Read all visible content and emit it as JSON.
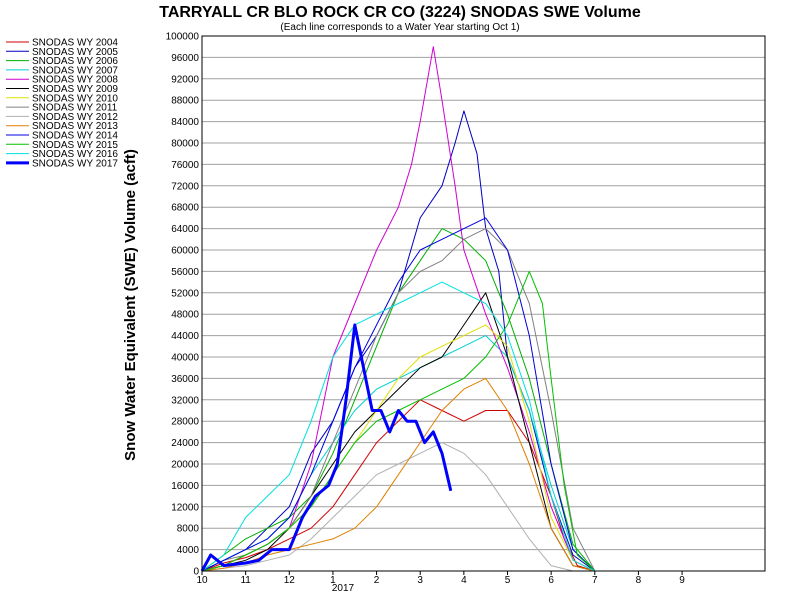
{
  "chart_data": {
    "type": "line",
    "title": "TARRYALL CR BLO ROCK CR CO (3224) SNODAS SWE Volume",
    "subtitle": "(Each line corresponds to a Water Year starting Oct 1)",
    "ylabel": "Snow Water Equivalent (SWE) Volume (acft)",
    "xlabel": "",
    "ylim": [
      0,
      100000
    ],
    "yticks": [
      "0",
      "4000",
      "8000",
      "12000",
      "16000",
      "20000",
      "24000",
      "28000",
      "32000",
      "36000",
      "40000",
      "44000",
      "48000",
      "52000",
      "56000",
      "60000",
      "64000",
      "68000",
      "72000",
      "76000",
      "80000",
      "84000",
      "88000",
      "92000",
      "96000",
      "100000"
    ],
    "xlim": [
      10,
      22.9
    ],
    "xticks": [
      {
        "v": 10,
        "label": "10"
      },
      {
        "v": 11,
        "label": "11"
      },
      {
        "v": 12,
        "label": "12"
      },
      {
        "v": 13,
        "label": "1"
      },
      {
        "v": 14,
        "label": "2"
      },
      {
        "v": 15,
        "label": "3"
      },
      {
        "v": 16,
        "label": "4"
      },
      {
        "v": 17,
        "label": "5"
      },
      {
        "v": 18,
        "label": "6"
      },
      {
        "v": 19,
        "label": "7"
      },
      {
        "v": 20,
        "label": "8"
      },
      {
        "v": 21,
        "label": "9"
      }
    ],
    "year_label": "2017",
    "grid": true,
    "legend": "left",
    "series": [
      {
        "name": "SNODAS WY 2004",
        "color": "#d00000",
        "width": 1,
        "x": [
          10,
          10.5,
          11,
          11.5,
          12,
          12.5,
          13,
          13.5,
          14,
          14.5,
          15,
          15.5,
          16,
          16.5,
          17,
          17.5,
          18,
          18.3,
          18.6,
          19
        ],
        "y": [
          0,
          1500,
          2500,
          4000,
          6000,
          8000,
          12000,
          18000,
          24000,
          28000,
          32000,
          30000,
          28000,
          30000,
          30000,
          24000,
          14000,
          6000,
          1000,
          0
        ]
      },
      {
        "name": "SNODAS WY 2005",
        "color": "#0000c0",
        "width": 1,
        "x": [
          10,
          10.5,
          11,
          11.5,
          12,
          12.5,
          13,
          13.5,
          14,
          14.5,
          15,
          15.5,
          15.8,
          16,
          16.3,
          16.5,
          16.8,
          17,
          17.5,
          18,
          18.5,
          19
        ],
        "y": [
          0,
          2000,
          4000,
          8000,
          12000,
          22000,
          28000,
          38000,
          44000,
          52000,
          66000,
          72000,
          80000,
          86000,
          78000,
          64000,
          56000,
          40000,
          30000,
          14000,
          3000,
          0
        ]
      },
      {
        "name": "SNODAS WY 2006",
        "color": "#00b000",
        "width": 1,
        "x": [
          10,
          10.5,
          11,
          11.5,
          12,
          12.5,
          13,
          13.5,
          14,
          14.5,
          15,
          15.5,
          16,
          16.5,
          17,
          17.5,
          18,
          18.5,
          19
        ],
        "y": [
          0,
          3000,
          6000,
          8000,
          10000,
          14000,
          22000,
          32000,
          42000,
          52000,
          58000,
          64000,
          62000,
          58000,
          48000,
          36000,
          20000,
          5000,
          0
        ]
      },
      {
        "name": "SNODAS WY 2007",
        "color": "#00d0d0",
        "width": 1,
        "x": [
          10,
          10.5,
          11,
          11.5,
          12,
          12.5,
          13,
          13.5,
          14,
          14.5,
          15,
          15.5,
          16,
          16.5,
          17,
          17.5,
          18,
          18.5,
          19
        ],
        "y": [
          0,
          2000,
          4000,
          6000,
          10000,
          18000,
          24000,
          30000,
          34000,
          36000,
          38000,
          40000,
          42000,
          44000,
          40000,
          30000,
          16000,
          4000,
          0
        ]
      },
      {
        "name": "SNODAS WY 2008",
        "color": "#d000d0",
        "width": 1,
        "x": [
          10,
          10.5,
          11,
          11.5,
          12,
          12.5,
          13,
          13.5,
          14,
          14.5,
          14.8,
          15,
          15.3,
          15.5,
          15.8,
          16,
          16.5,
          17,
          17.5,
          18,
          18.5,
          19
        ],
        "y": [
          0,
          1000,
          3000,
          5000,
          8000,
          20000,
          40000,
          50000,
          60000,
          68000,
          76000,
          84000,
          98000,
          88000,
          72000,
          60000,
          48000,
          38000,
          26000,
          12000,
          2000,
          0
        ]
      },
      {
        "name": "SNODAS WY 2009",
        "color": "#000000",
        "width": 1,
        "x": [
          10,
          10.5,
          11,
          11.5,
          12,
          12.5,
          13,
          13.5,
          14,
          14.5,
          15,
          15.5,
          16,
          16.5,
          17,
          17.5,
          18,
          18.5,
          19
        ],
        "y": [
          0,
          1000,
          2000,
          4000,
          8000,
          14000,
          20000,
          26000,
          30000,
          34000,
          38000,
          40000,
          46000,
          52000,
          40000,
          24000,
          8000,
          1000,
          0
        ]
      },
      {
        "name": "SNODAS WY 2010",
        "color": "#e0e000",
        "width": 1,
        "x": [
          10,
          10.5,
          11,
          11.5,
          12,
          12.5,
          13,
          13.5,
          14,
          14.5,
          15,
          15.5,
          16,
          16.5,
          17,
          17.5,
          18,
          18.5,
          19
        ],
        "y": [
          0,
          1000,
          3000,
          5000,
          8000,
          12000,
          18000,
          24000,
          30000,
          36000,
          40000,
          42000,
          44000,
          46000,
          42000,
          28000,
          10000,
          2000,
          0
        ]
      },
      {
        "name": "SNODAS WY 2011",
        "color": "#808080",
        "width": 1,
        "x": [
          10,
          10.5,
          11,
          11.5,
          12,
          12.5,
          13,
          13.5,
          14,
          14.5,
          15,
          15.5,
          16,
          16.5,
          17,
          17.5,
          18,
          18.5,
          19
        ],
        "y": [
          0,
          2000,
          3000,
          5000,
          8000,
          14000,
          24000,
          34000,
          44000,
          52000,
          56000,
          58000,
          62000,
          64000,
          60000,
          50000,
          30000,
          8000,
          0
        ]
      },
      {
        "name": "SNODAS WY 2012",
        "color": "#b0b0b0",
        "width": 1,
        "x": [
          10,
          10.5,
          11,
          11.5,
          12,
          12.5,
          13,
          13.5,
          14,
          14.5,
          15,
          15.5,
          16,
          16.5,
          17,
          17.5,
          18,
          18.5
        ],
        "y": [
          0,
          500,
          1000,
          2000,
          3000,
          6000,
          10000,
          14000,
          18000,
          20000,
          22000,
          24000,
          22000,
          18000,
          12000,
          6000,
          1000,
          0
        ]
      },
      {
        "name": "SNODAS WY 2013",
        "color": "#e08000",
        "width": 1,
        "x": [
          10,
          10.5,
          11,
          11.5,
          12,
          12.5,
          13,
          13.5,
          14,
          14.5,
          15,
          15.5,
          16,
          16.5,
          17,
          17.5,
          18,
          18.5,
          19
        ],
        "y": [
          0,
          500,
          1500,
          3000,
          4000,
          5000,
          6000,
          8000,
          12000,
          18000,
          24000,
          30000,
          34000,
          36000,
          30000,
          20000,
          8000,
          1000,
          0
        ]
      },
      {
        "name": "SNODAS WY 2014",
        "color": "#0000e0",
        "width": 1,
        "x": [
          10,
          10.5,
          11,
          11.5,
          12,
          12.5,
          13,
          13.5,
          14,
          14.5,
          15,
          15.5,
          16,
          16.5,
          17,
          17.5,
          18,
          18.5,
          19
        ],
        "y": [
          0,
          2000,
          4000,
          6000,
          10000,
          18000,
          28000,
          38000,
          46000,
          54000,
          60000,
          62000,
          64000,
          66000,
          60000,
          44000,
          20000,
          4000,
          0
        ]
      },
      {
        "name": "SNODAS WY 2015",
        "color": "#00c000",
        "width": 1,
        "x": [
          10,
          10.5,
          11,
          11.5,
          12,
          12.5,
          13,
          13.5,
          14,
          14.5,
          15,
          15.5,
          16,
          16.5,
          17,
          17.5,
          17.8,
          18,
          18.3,
          18.6,
          19
        ],
        "y": [
          0,
          1000,
          3000,
          5000,
          8000,
          12000,
          18000,
          24000,
          28000,
          30000,
          32000,
          34000,
          36000,
          40000,
          46000,
          56000,
          50000,
          36000,
          16000,
          3000,
          0
        ]
      },
      {
        "name": "SNODAS WY 2016",
        "color": "#00e0e0",
        "width": 1,
        "x": [
          10,
          10.5,
          11,
          11.5,
          12,
          12.5,
          13,
          13.5,
          14,
          14.5,
          15,
          15.5,
          16,
          16.5,
          17,
          17.5,
          18,
          18.5,
          19
        ],
        "y": [
          0,
          3000,
          10000,
          14000,
          18000,
          28000,
          40000,
          46000,
          48000,
          50000,
          52000,
          54000,
          52000,
          50000,
          44000,
          32000,
          14000,
          2000,
          0
        ]
      },
      {
        "name": "SNODAS WY 2017",
        "color": "#0000ff",
        "width": 3,
        "x": [
          10,
          10.2,
          10.5,
          11,
          11.3,
          11.6,
          12,
          12.3,
          12.6,
          12.9,
          13.1,
          13.3,
          13.5,
          13.7,
          13.9,
          14.1,
          14.3,
          14.5,
          14.7,
          14.9,
          15.1,
          15.3,
          15.5,
          15.7
        ],
        "y": [
          0,
          3000,
          1000,
          1500,
          2000,
          4000,
          4000,
          10000,
          14000,
          16000,
          20000,
          32000,
          46000,
          38000,
          30000,
          30000,
          26000,
          30000,
          28000,
          28000,
          24000,
          26000,
          22000,
          15000
        ]
      }
    ]
  }
}
